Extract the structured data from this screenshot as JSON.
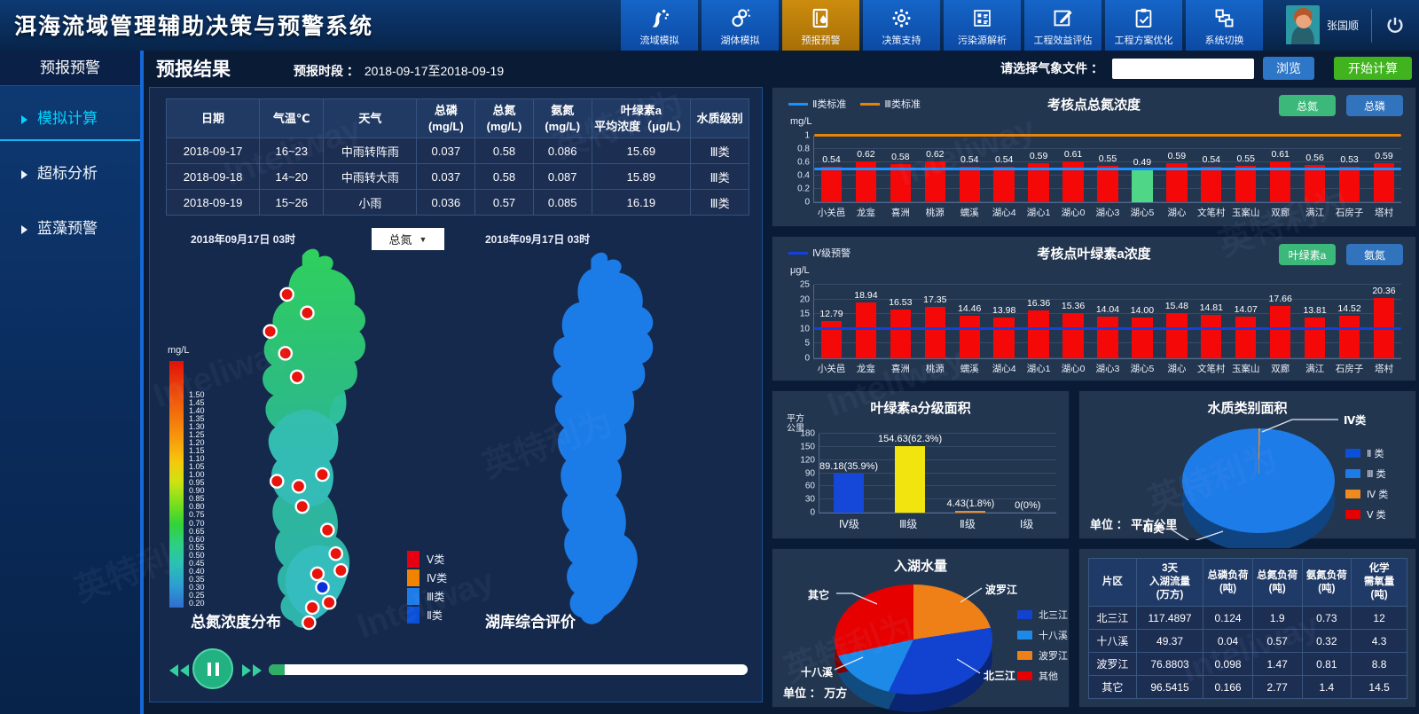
{
  "watermark": {
    "text_en": "Inteliway",
    "text_zh": "英特利为"
  },
  "header": {
    "title": "洱海流域管理辅助决策与预警系统",
    "nav": [
      {
        "label": "流域模拟",
        "active": false
      },
      {
        "label": "湖体模拟",
        "active": false
      },
      {
        "label": "预报预警",
        "active": true
      },
      {
        "label": "决策支持",
        "active": false
      },
      {
        "label": "污染源解析",
        "active": false
      },
      {
        "label": "工程效益评估",
        "active": false
      },
      {
        "label": "工程方案优化",
        "active": false
      },
      {
        "label": "系统切换",
        "active": false
      }
    ],
    "user": {
      "name": "张国顺"
    }
  },
  "sidebar": {
    "title": "预报预警",
    "items": [
      {
        "label": "模拟计算",
        "active": true
      },
      {
        "label": "超标分析",
        "active": false
      },
      {
        "label": "蓝藻预警",
        "active": false
      }
    ]
  },
  "toolbar": {
    "page_title": "预报结果",
    "period_label": "预报时段 ：",
    "period_value": "2018-09-17至2018-09-19",
    "file_label": "请选择气象文件 ：",
    "file_value": "",
    "browse_label": "浏览",
    "start_label": "开始计算"
  },
  "forecast_table": {
    "headers": [
      [
        "日期"
      ],
      [
        "气温℃"
      ],
      [
        "天气"
      ],
      [
        "总磷",
        "(mg/L)"
      ],
      [
        "总氮",
        "(mg/L)"
      ],
      [
        "氨氮",
        "(mg/L)"
      ],
      [
        "叶绿素a",
        "平均浓度（μg/L）"
      ],
      [
        "水质级别"
      ]
    ],
    "rows": [
      [
        "2018-09-17",
        "16~23",
        "中雨转阵雨",
        "0.037",
        "0.58",
        "0.086",
        "15.69",
        "Ⅲ类"
      ],
      [
        "2018-09-18",
        "14~20",
        "中雨转大雨",
        "0.037",
        "0.58",
        "0.087",
        "15.89",
        "Ⅲ类"
      ],
      [
        "2018-09-19",
        "15~26",
        "小雨",
        "0.036",
        "0.57",
        "0.085",
        "16.19",
        "Ⅲ类"
      ]
    ]
  },
  "maps": {
    "left": {
      "date": "2018年09月17日 03时",
      "dropdown_value": "总氮",
      "scale_unit": "mg/L",
      "scale_labels": [
        "1.50",
        "1.45",
        "1.40",
        "1.35",
        "1.30",
        "1.25",
        "1.20",
        "1.15",
        "1.10",
        "1.05",
        "1.00",
        "0.95",
        "0.90",
        "0.85",
        "0.80",
        "0.75",
        "0.70",
        "0.65",
        "0.60",
        "0.55",
        "0.50",
        "0.45",
        "0.40",
        "0.35",
        "0.30",
        "0.25",
        "0.20"
      ],
      "title": "总氮浓度分布",
      "markers": {
        "red": [
          [
            78,
            60
          ],
          [
            58,
            104
          ],
          [
            102,
            82
          ],
          [
            76,
            130
          ],
          [
            90,
            158
          ],
          [
            66,
            282
          ],
          [
            92,
            288
          ],
          [
            120,
            274
          ],
          [
            96,
            312
          ],
          [
            126,
            340
          ],
          [
            136,
            368
          ],
          [
            114,
            392
          ],
          [
            142,
            388
          ],
          [
            108,
            432
          ],
          [
            128,
            426
          ],
          [
            104,
            450
          ]
        ],
        "blue": [
          [
            120,
            408
          ]
        ]
      }
    },
    "right": {
      "date": "2018年09月17日 03时",
      "title": "湖库综合评价",
      "legend": [
        {
          "label": "Ⅴ类",
          "color": "#e60012"
        },
        {
          "label": "Ⅳ类",
          "color": "#f08300"
        },
        {
          "label": "Ⅲ类",
          "color": "#1e7ce8"
        },
        {
          "label": "Ⅱ类",
          "color": "#0b50d8"
        }
      ]
    }
  },
  "chart_data": [
    {
      "id": "tn-bar",
      "type": "bar",
      "title": "考核点总氮浓度",
      "unit": "mg/L",
      "legend": [
        {
          "label": "Ⅱ类标准",
          "color": "#1e8fff"
        },
        {
          "label": "Ⅲ类标准",
          "color": "#e8830a"
        }
      ],
      "buttons": [
        {
          "label": "总氮"
        },
        {
          "label": "总磷"
        }
      ],
      "categories": [
        "小关邑",
        "龙龛",
        "喜洲",
        "桃源",
        "蠕溪",
        "湖心4",
        "湖心1",
        "湖心0",
        "湖心3",
        "湖心5",
        "湖心",
        "文笔村",
        "玉案山",
        "双廊",
        "满江",
        "石房子",
        "塔村"
      ],
      "values": [
        0.54,
        0.62,
        0.58,
        0.62,
        0.54,
        0.54,
        0.59,
        0.61,
        0.55,
        0.49,
        0.59,
        0.54,
        0.55,
        0.61,
        0.56,
        0.53,
        0.59
      ],
      "labels": [
        "0.54",
        "0.62",
        "0.58",
        "0.62",
        "0.54",
        "0.54",
        "0.59",
        "0.61",
        "0.55",
        "0.49",
        "0.59",
        "0.54",
        "0.55",
        "0.61",
        "0.56",
        "0.53",
        "0.59"
      ],
      "bar_color": "#f50808",
      "highlight_index": 9,
      "highlight_color": "#4fd687",
      "ylim": [
        0,
        1
      ],
      "yticks": [
        "0",
        "0.2",
        "0.4",
        "0.6",
        "0.8",
        "1"
      ],
      "ref_lines": [
        {
          "label": "Ⅱ类标准",
          "value": 0.5,
          "color": "#1e8fff"
        },
        {
          "label": "Ⅲ类标准",
          "value": 1.0,
          "color": "#e8830a"
        }
      ]
    },
    {
      "id": "chla-bar",
      "type": "bar",
      "title": "考核点叶绿素a浓度",
      "unit": "μg/L",
      "legend": [
        {
          "label": "Ⅳ级预警",
          "color": "#1540e0"
        }
      ],
      "buttons": [
        {
          "label": "叶绿素a"
        },
        {
          "label": "氨氮"
        }
      ],
      "categories": [
        "小关邑",
        "龙龛",
        "喜洲",
        "桃源",
        "蠕溪",
        "湖心4",
        "湖心1",
        "湖心0",
        "湖心3",
        "湖心5",
        "湖心",
        "文笔村",
        "玉案山",
        "双廊",
        "满江",
        "石房子",
        "塔村"
      ],
      "values": [
        12.79,
        18.94,
        16.53,
        17.35,
        14.46,
        13.98,
        16.36,
        15.36,
        14.04,
        14.0,
        15.48,
        14.81,
        14.07,
        17.66,
        13.81,
        14.52,
        20.36
      ],
      "labels": [
        "12.79",
        "18.94",
        "16.53",
        "17.35",
        "14.46",
        "13.98",
        "16.36",
        "15.36",
        "14.04",
        "14.00",
        "15.48",
        "14.81",
        "14.07",
        "17.66",
        "13.81",
        "14.52",
        "20.36"
      ],
      "bar_color": "#f50808",
      "ylim": [
        0,
        25
      ],
      "yticks": [
        "0",
        "5",
        "10",
        "15",
        "20",
        "25"
      ],
      "ref_lines": [
        {
          "label": "Ⅳ级预警",
          "value": 10,
          "color": "#1540e0"
        }
      ]
    },
    {
      "id": "area-bar",
      "type": "bar",
      "title": "叶绿素a分级面积",
      "unit": "平方公里",
      "unit_lines": "平方\n公里",
      "categories": [
        "Ⅳ级",
        "Ⅲ级",
        "Ⅱ级",
        "Ⅰ级"
      ],
      "values": [
        89.18,
        154.63,
        4.43,
        0
      ],
      "labels": [
        "89.18(35.9%)",
        "154.63(62.3%)",
        "4.43(1.8%)",
        "0(0%)"
      ],
      "colors": [
        "#1547d8",
        "#f2e40e",
        "#ef8b1e",
        "transparent"
      ],
      "ylim": [
        0,
        180
      ],
      "yticks": [
        "0",
        "30",
        "60",
        "90",
        "120",
        "150",
        "180"
      ]
    },
    {
      "id": "quality-pie",
      "type": "pie",
      "title": "水质类别面积",
      "unit_label": "单位 ：  平方公里",
      "slices": [
        {
          "label": "Ⅳ类",
          "value": 0.5,
          "color": "#ef8b1e"
        },
        {
          "label": "Ⅲ类",
          "value": 99.5,
          "color": "#1e7ce8"
        }
      ],
      "legend": [
        {
          "label": "Ⅱ 类",
          "color": "#0b50d8"
        },
        {
          "label": "Ⅲ 类",
          "color": "#1e7ce8"
        },
        {
          "label": "Ⅳ 类",
          "color": "#ef8b1e"
        },
        {
          "label": "Ⅴ 类",
          "color": "#e60000"
        }
      ],
      "callouts": [
        "Ⅳ类",
        "Ⅲ类"
      ]
    },
    {
      "id": "inflow-pie",
      "type": "pie",
      "title": "入湖水量",
      "unit_label": "单位 ：  万方",
      "slices": [
        {
          "label": "波罗江",
          "value": 76.8803,
          "color": "#ef7f17"
        },
        {
          "label": "北三江",
          "value": 117.4897,
          "color": "#1243d0"
        },
        {
          "label": "十八溪",
          "value": 49.37,
          "color": "#1e8ae8"
        },
        {
          "label": "其它",
          "value": 96.5415,
          "color": "#e60000"
        }
      ],
      "legend": [
        {
          "label": "北三江",
          "color": "#1243d0"
        },
        {
          "label": "十八溪",
          "color": "#1e8ae8"
        },
        {
          "label": "波罗江",
          "color": "#ef7f17"
        },
        {
          "label": "其他",
          "color": "#e60000"
        }
      ],
      "callouts": [
        "其它",
        "波罗江",
        "北三江",
        "十八溪"
      ]
    }
  ],
  "load_table": {
    "headers": [
      [
        "片区"
      ],
      [
        "3天",
        "入湖流量",
        "(万方)"
      ],
      [
        "总磷负荷",
        "(吨)"
      ],
      [
        "总氮负荷",
        "(吨)"
      ],
      [
        "氨氮负荷",
        "(吨)"
      ],
      [
        "化学",
        "需氧量",
        "(吨)"
      ]
    ],
    "rows": [
      [
        "北三江",
        "117.4897",
        "0.124",
        "1.9",
        "0.73",
        "12"
      ],
      [
        "十八溪",
        "49.37",
        "0.04",
        "0.57",
        "0.32",
        "4.3"
      ],
      [
        "波罗江",
        "76.8803",
        "0.098",
        "1.47",
        "0.81",
        "8.8"
      ],
      [
        "其它",
        "96.5415",
        "0.166",
        "2.77",
        "1.4",
        "14.5"
      ]
    ]
  }
}
